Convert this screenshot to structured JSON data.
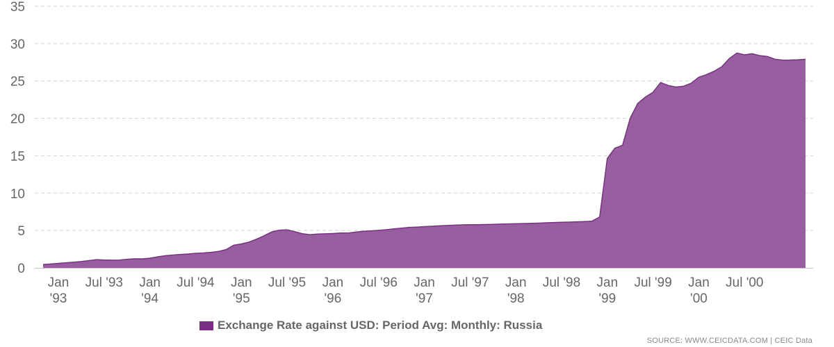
{
  "colors": {
    "series": "#7b2e85",
    "fill": "#975ea0",
    "grid": "#d4d4d4",
    "axis": "#c4c4c4",
    "text": "#666666"
  },
  "legend": {
    "label": "Exchange Rate against USD: Period Avg: Monthly: Russia"
  },
  "source": {
    "text": "SOURCE: WWW.CEICDATA.COM | CEIC Data"
  },
  "chart_data": {
    "type": "area",
    "x_start": "1992-07",
    "frequency": "monthly",
    "ylim": [
      0,
      35
    ],
    "yticks": [
      0,
      5,
      10,
      15,
      20,
      25,
      30,
      35
    ],
    "grid": true,
    "legend_position": "bottom",
    "xticks": [
      {
        "label": [
          "Jan",
          "'93"
        ],
        "date": "1993-01"
      },
      {
        "label": [
          "Jul '93"
        ],
        "date": "1993-07"
      },
      {
        "label": [
          "Jan",
          "'94"
        ],
        "date": "1994-01"
      },
      {
        "label": [
          "Jul '94"
        ],
        "date": "1994-07"
      },
      {
        "label": [
          "Jan",
          "'95"
        ],
        "date": "1995-01"
      },
      {
        "label": [
          "Jul '95"
        ],
        "date": "1995-07"
      },
      {
        "label": [
          "Jan",
          "'96"
        ],
        "date": "1996-01"
      },
      {
        "label": [
          "Jul '96"
        ],
        "date": "1996-07"
      },
      {
        "label": [
          "Jan",
          "'97"
        ],
        "date": "1997-01"
      },
      {
        "label": [
          "Jul '97"
        ],
        "date": "1997-07"
      },
      {
        "label": [
          "Jan",
          "'98"
        ],
        "date": "1998-01"
      },
      {
        "label": [
          "Jul '98"
        ],
        "date": "1998-07"
      },
      {
        "label": [
          "Jan",
          "'99"
        ],
        "date": "1999-01"
      },
      {
        "label": [
          "Jul '99"
        ],
        "date": "1999-07"
      },
      {
        "label": [
          "Jan",
          "'00"
        ],
        "date": "2000-01"
      },
      {
        "label": [
          "Jul '00"
        ],
        "date": "2000-07"
      }
    ],
    "series": [
      {
        "name": "Exchange Rate against USD: Period Avg: Monthly: Russia",
        "values": [
          0.16,
          0.2,
          0.25,
          0.34,
          0.4,
          0.41,
          0.45,
          0.52,
          0.6,
          0.68,
          0.76,
          0.85,
          0.98,
          1.1,
          1.06,
          1.03,
          1.05,
          1.15,
          1.22,
          1.21,
          1.3,
          1.47,
          1.62,
          1.72,
          1.8,
          1.86,
          1.95,
          2.0,
          2.08,
          2.2,
          2.45,
          3.03,
          3.2,
          3.45,
          3.85,
          4.3,
          4.82,
          5.05,
          5.1,
          4.85,
          4.57,
          4.44,
          4.52,
          4.56,
          4.6,
          4.66,
          4.66,
          4.79,
          4.9,
          4.95,
          5.03,
          5.11,
          5.22,
          5.32,
          5.42,
          5.46,
          5.52,
          5.57,
          5.63,
          5.68,
          5.72,
          5.76,
          5.78,
          5.78,
          5.8,
          5.83,
          5.86,
          5.88,
          5.91,
          5.93,
          5.96,
          5.99,
          6.03,
          6.07,
          6.1,
          6.13,
          6.16,
          6.2,
          6.26,
          6.81,
          14.64,
          16.01,
          16.4,
          20.0,
          22.0,
          22.85,
          23.5,
          24.8,
          24.4,
          24.2,
          24.3,
          24.7,
          25.5,
          25.85,
          26.3,
          26.9,
          28.0,
          28.74,
          28.5,
          28.65,
          28.4,
          28.28,
          27.91,
          27.79,
          27.8,
          27.84,
          27.91
        ]
      }
    ]
  }
}
